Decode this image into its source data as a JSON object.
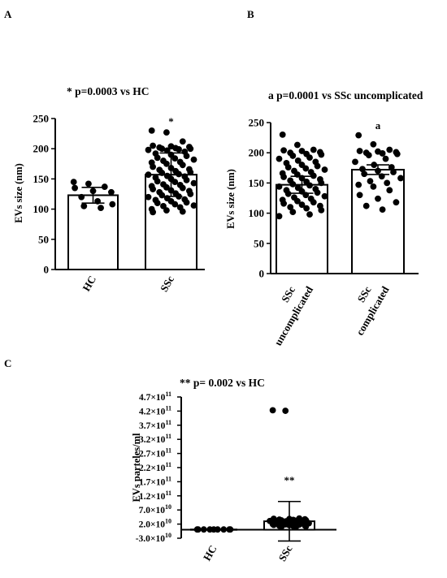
{
  "chart_data": [
    {
      "panel_label": "A",
      "type": "bar",
      "annotation": "*  p=0.0003 vs HC",
      "ylabel": "EVs size (nm)",
      "ylim": [
        0,
        250
      ],
      "yticks": [
        "0",
        "50",
        "100",
        "150",
        "200",
        "250"
      ],
      "categories": [
        "HC",
        "SSc"
      ],
      "values": [
        123,
        157
      ],
      "error": [
        13,
        36
      ],
      "markers": [
        "",
        "*"
      ],
      "points": [
        [
          145,
          142,
          137,
          135,
          130,
          128,
          120,
          113,
          108,
          105,
          102
        ],
        [
          230,
          227,
          212,
          205,
          204,
          203,
          202,
          201,
          200,
          200,
          199,
          198,
          197,
          195,
          192,
          190,
          188,
          185,
          184,
          182,
          180,
          178,
          177,
          175,
          173,
          170,
          168,
          166,
          165,
          163,
          161,
          160,
          158,
          157,
          155,
          154,
          152,
          150,
          148,
          146,
          145,
          143,
          141,
          140,
          138,
          136,
          135,
          133,
          131,
          130,
          128,
          126,
          125,
          123,
          121,
          120,
          118,
          116,
          115,
          113,
          111,
          110,
          108,
          106,
          105,
          103,
          100,
          98,
          96,
          95
        ]
      ]
    },
    {
      "panel_label": "B",
      "type": "bar",
      "annotation": "a  p=0.0001 vs SSc uncomplicated",
      "ylabel": "EVs size (nm)",
      "ylim": [
        0,
        250
      ],
      "yticks": [
        "0",
        "50",
        "100",
        "150",
        "200",
        "250"
      ],
      "categories": [
        [
          "SSc",
          "uncomplicated"
        ],
        [
          "SSc",
          "complicated"
        ]
      ],
      "values": [
        147,
        172
      ],
      "error": [
        14,
        8
      ],
      "markers": [
        "",
        "a"
      ],
      "points": [
        [
          230,
          213,
          205,
          204,
          203,
          201,
          200,
          198,
          197,
          195,
          192,
          190,
          187,
          185,
          183,
          180,
          178,
          176,
          174,
          172,
          170,
          168,
          166,
          164,
          162,
          160,
          158,
          156,
          154,
          152,
          150,
          148,
          146,
          144,
          142,
          140,
          138,
          136,
          134,
          132,
          130,
          128,
          126,
          124,
          122,
          120,
          118,
          116,
          114,
          112,
          110,
          108,
          105,
          102,
          98,
          95
        ],
        [
          229,
          214,
          205,
          203,
          202,
          201,
          200,
          199,
          198,
          196,
          190,
          185,
          180,
          176,
          173,
          170,
          168,
          165,
          161,
          158,
          153,
          150,
          147,
          144,
          138,
          130,
          124,
          118,
          112,
          106
        ]
      ]
    },
    {
      "panel_label": "C",
      "type": "bar",
      "annotation": "**  p= 0.002 vs HC",
      "ylabel": "EVs parteles/ml",
      "ylim": [
        -30000000000,
        470000000000
      ],
      "yticks": [
        {
          "v": 470000000000,
          "m": "4.7",
          "e": "11"
        },
        {
          "v": 420000000000,
          "m": "4.2",
          "e": "11"
        },
        {
          "v": 370000000000,
          "m": "3.7",
          "e": "11"
        },
        {
          "v": 320000000000,
          "m": "3.2",
          "e": "11"
        },
        {
          "v": 270000000000,
          "m": "2.7",
          "e": "11"
        },
        {
          "v": 220000000000,
          "m": "2.2",
          "e": "11"
        },
        {
          "v": 170000000000,
          "m": "1.7",
          "e": "11"
        },
        {
          "v": 120000000000,
          "m": "1.2",
          "e": "11"
        },
        {
          "v": 70000000000,
          "m": "7.0",
          "e": "10"
        },
        {
          "v": 20000000000,
          "m": "2.0",
          "e": "10"
        },
        {
          "v": -30000000000,
          "m": "-3.0",
          "e": "10"
        }
      ],
      "categories": [
        "HC",
        "SSc"
      ],
      "values": [
        1000000000,
        30000000000
      ],
      "error": [
        0,
        70000000000
      ],
      "markers": [
        "",
        "**"
      ],
      "points": [
        [
          1000000000,
          1000000000,
          1000000000,
          1000000000,
          1000000000,
          1000000000,
          1000000000,
          1000000000,
          1000000000
        ],
        [
          423000000000,
          421000000000,
          40000000000,
          39000000000,
          38000000000,
          37000000000,
          36000000000,
          35000000000,
          34000000000,
          33000000000,
          32000000000,
          31000000000,
          30000000000,
          29000000000,
          28000000000,
          27000000000,
          26000000000,
          25000000000,
          24000000000,
          23000000000,
          22000000000,
          21000000000,
          20000000000,
          19000000000,
          18000000000,
          17000000000,
          16000000000,
          15000000000,
          14000000000,
          13000000000,
          12000000000,
          11000000000,
          10000000000
        ]
      ]
    }
  ]
}
